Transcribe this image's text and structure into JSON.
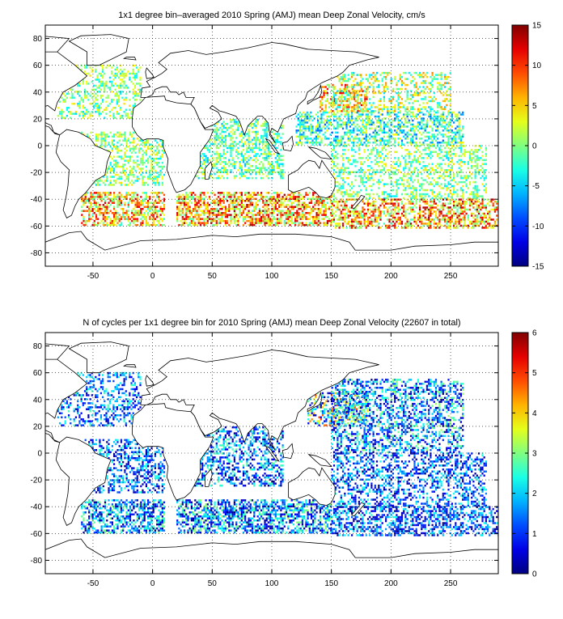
{
  "chart_data": [
    {
      "type": "heatmap",
      "title": "1x1 degree bin–averaged 2010 Spring (AMJ) mean Deep Zonal Velocity, cm/s",
      "xlabel": "",
      "ylabel": "",
      "xlim": [
        -90,
        290
      ],
      "ylim": [
        -90,
        90
      ],
      "x_ticks": [
        -50,
        0,
        50,
        100,
        150,
        200,
        250
      ],
      "y_ticks": [
        80,
        60,
        40,
        20,
        0,
        -20,
        -40,
        -60,
        -80
      ],
      "grid": true,
      "grid_style": "dotted",
      "colorbar": {
        "range": [
          -15,
          15
        ],
        "ticks": [
          15,
          10,
          5,
          0,
          -5,
          -10,
          -15
        ],
        "colormap": "jet",
        "placement": "right"
      },
      "regions": [
        {
          "x": [
            -80,
            -10
          ],
          "y": [
            20,
            60
          ],
          "value": 0,
          "spread": 3,
          "density": 0.35
        },
        {
          "x": [
            -60,
            10
          ],
          "y": [
            -30,
            10
          ],
          "value": 0,
          "spread": 3,
          "density": 0.45
        },
        {
          "x": [
            -60,
            10
          ],
          "y": [
            -60,
            -35
          ],
          "value": 5,
          "spread": 5,
          "density": 0.55
        },
        {
          "x": [
            20,
            110
          ],
          "y": [
            -25,
            20
          ],
          "value": -1,
          "spread": 3,
          "density": 0.45
        },
        {
          "x": [
            20,
            150
          ],
          "y": [
            -60,
            -35
          ],
          "value": 6,
          "spread": 5,
          "density": 0.6
        },
        {
          "x": [
            140,
            180
          ],
          "y": [
            25,
            45
          ],
          "value": 6,
          "spread": 4,
          "density": 0.45
        },
        {
          "x": [
            120,
            260
          ],
          "y": [
            0,
            25
          ],
          "value": -2,
          "spread": 4,
          "density": 0.5
        },
        {
          "x": [
            150,
            250
          ],
          "y": [
            25,
            55
          ],
          "value": 1,
          "spread": 4,
          "density": 0.35
        },
        {
          "x": [
            150,
            280
          ],
          "y": [
            -40,
            0
          ],
          "value": 0,
          "spread": 3,
          "density": 0.35
        },
        {
          "x": [
            150,
            290
          ],
          "y": [
            -62,
            -40
          ],
          "value": 6,
          "spread": 5,
          "density": 0.55
        }
      ]
    },
    {
      "type": "heatmap",
      "title": "N of cycles per 1x1 degree bin for 2010 Spring (AMJ) mean Deep Zonal Velocity (22607 in total)",
      "xlabel": "",
      "ylabel": "",
      "xlim": [
        -90,
        290
      ],
      "ylim": [
        -90,
        90
      ],
      "x_ticks": [
        -50,
        0,
        50,
        100,
        150,
        200,
        250
      ],
      "y_ticks": [
        80,
        60,
        40,
        20,
        0,
        -20,
        -40,
        -60,
        -80
      ],
      "grid": true,
      "grid_style": "dotted",
      "total": 22607,
      "colorbar": {
        "range": [
          0,
          6
        ],
        "ticks": [
          6,
          5,
          4,
          3,
          2,
          1,
          0
        ],
        "colormap": "jet",
        "placement": "right"
      },
      "regions": [
        {
          "x": [
            -80,
            -10
          ],
          "y": [
            20,
            60
          ],
          "value": 1.5,
          "spread": 0.8,
          "density": 0.35
        },
        {
          "x": [
            -60,
            10
          ],
          "y": [
            -30,
            10
          ],
          "value": 1.3,
          "spread": 0.8,
          "density": 0.45
        },
        {
          "x": [
            -60,
            10
          ],
          "y": [
            -60,
            -35
          ],
          "value": 1.5,
          "spread": 1,
          "density": 0.55
        },
        {
          "x": [
            20,
            110
          ],
          "y": [
            -25,
            20
          ],
          "value": 1.4,
          "spread": 0.9,
          "density": 0.45
        },
        {
          "x": [
            20,
            150
          ],
          "y": [
            -60,
            -35
          ],
          "value": 1.6,
          "spread": 1,
          "density": 0.6
        },
        {
          "x": [
            130,
            180
          ],
          "y": [
            20,
            45
          ],
          "value": 2.5,
          "spread": 1.5,
          "density": 0.45
        },
        {
          "x": [
            150,
            260
          ],
          "y": [
            0,
            55
          ],
          "value": 1.6,
          "spread": 1,
          "density": 0.45
        },
        {
          "x": [
            150,
            280
          ],
          "y": [
            -40,
            0
          ],
          "value": 1.3,
          "spread": 0.8,
          "density": 0.4
        },
        {
          "x": [
            150,
            290
          ],
          "y": [
            -62,
            -40
          ],
          "value": 1.2,
          "spread": 0.8,
          "density": 0.5
        }
      ]
    }
  ],
  "land": [
    {
      "name": "north-america",
      "points": [
        [
          -168,
          66
        ],
        [
          -160,
          70
        ],
        [
          -140,
          70
        ],
        [
          -125,
          70
        ],
        [
          -95,
          72
        ],
        [
          -80,
          70
        ],
        [
          -65,
          60
        ],
        [
          -55,
          52
        ],
        [
          -65,
          45
        ],
        [
          -75,
          40
        ],
        [
          -80,
          32
        ],
        [
          -82,
          26
        ],
        [
          -88,
          30
        ],
        [
          -97,
          27
        ],
        [
          -97,
          20
        ],
        [
          -92,
          18
        ],
        [
          -85,
          15
        ],
        [
          -83,
          10
        ],
        [
          -78,
          8
        ],
        [
          -82,
          9
        ],
        [
          -87,
          14
        ],
        [
          -95,
          16
        ],
        [
          -105,
          20
        ],
        [
          -110,
          24
        ],
        [
          -115,
          30
        ],
        [
          -122,
          37
        ],
        [
          -124,
          43
        ],
        [
          -124,
          48
        ],
        [
          -135,
          58
        ],
        [
          -150,
          60
        ],
        [
          -165,
          60
        ],
        [
          -168,
          66
        ]
      ]
    },
    {
      "name": "greenland",
      "points": [
        [
          -55,
          60
        ],
        [
          -45,
          60
        ],
        [
          -22,
          70
        ],
        [
          -20,
          80
        ],
        [
          -35,
          83
        ],
        [
          -60,
          82
        ],
        [
          -70,
          78
        ],
        [
          -55,
          70
        ],
        [
          -55,
          60
        ]
      ]
    },
    {
      "name": "south-america",
      "points": [
        [
          -78,
          8
        ],
        [
          -72,
          12
        ],
        [
          -62,
          10
        ],
        [
          -52,
          5
        ],
        [
          -48,
          0
        ],
        [
          -35,
          -5
        ],
        [
          -38,
          -12
        ],
        [
          -40,
          -22
        ],
        [
          -48,
          -26
        ],
        [
          -56,
          -35
        ],
        [
          -62,
          -40
        ],
        [
          -65,
          -45
        ],
        [
          -68,
          -52
        ],
        [
          -72,
          -54
        ],
        [
          -75,
          -48
        ],
        [
          -73,
          -40
        ],
        [
          -71,
          -30
        ],
        [
          -70,
          -18
        ],
        [
          -77,
          -12
        ],
        [
          -81,
          -5
        ],
        [
          -80,
          0
        ],
        [
          -78,
          8
        ]
      ]
    },
    {
      "name": "eurasia",
      "points": [
        [
          -10,
          36
        ],
        [
          -9,
          43
        ],
        [
          -2,
          44
        ],
        [
          -5,
          48
        ],
        [
          2,
          51
        ],
        [
          8,
          54
        ],
        [
          12,
          57
        ],
        [
          5,
          62
        ],
        [
          15,
          69
        ],
        [
          30,
          71
        ],
        [
          45,
          68
        ],
        [
          60,
          70
        ],
        [
          80,
          73
        ],
        [
          100,
          77
        ],
        [
          110,
          76
        ],
        [
          130,
          72
        ],
        [
          150,
          71
        ],
        [
          170,
          70
        ],
        [
          180,
          68
        ],
        [
          190,
          66
        ],
        [
          180,
          64
        ],
        [
          165,
          60
        ],
        [
          160,
          55
        ],
        [
          155,
          52
        ],
        [
          142,
          47
        ],
        [
          135,
          43
        ],
        [
          130,
          40
        ],
        [
          128,
          35
        ],
        [
          122,
          30
        ],
        [
          120,
          24
        ],
        [
          110,
          20
        ],
        [
          108,
          16
        ],
        [
          105,
          10
        ],
        [
          100,
          13
        ],
        [
          98,
          8
        ],
        [
          103,
          2
        ],
        [
          98,
          10
        ],
        [
          97,
          17
        ],
        [
          92,
          22
        ],
        [
          88,
          22
        ],
        [
          80,
          15
        ],
        [
          77,
          8
        ],
        [
          73,
          18
        ],
        [
          70,
          22
        ],
        [
          60,
          25
        ],
        [
          56,
          26
        ],
        [
          50,
          30
        ],
        [
          48,
          28
        ],
        [
          55,
          25
        ],
        [
          58,
          20
        ],
        [
          52,
          16
        ],
        [
          44,
          13
        ],
        [
          40,
          18
        ],
        [
          35,
          28
        ],
        [
          32,
          31
        ],
        [
          35,
          36
        ],
        [
          28,
          36
        ],
        [
          26,
          40
        ],
        [
          22,
          38
        ],
        [
          20,
          40
        ],
        [
          15,
          40
        ],
        [
          12,
          44
        ],
        [
          8,
          44
        ],
        [
          2,
          42
        ],
        [
          0,
          38
        ],
        [
          -5,
          36
        ],
        [
          -10,
          36
        ]
      ]
    },
    {
      "name": "africa",
      "points": [
        [
          -17,
          21
        ],
        [
          -16,
          28
        ],
        [
          -10,
          32
        ],
        [
          -6,
          36
        ],
        [
          10,
          37
        ],
        [
          11,
          34
        ],
        [
          20,
          32
        ],
        [
          32,
          31
        ],
        [
          35,
          28
        ],
        [
          40,
          18
        ],
        [
          44,
          12
        ],
        [
          51,
          12
        ],
        [
          48,
          5
        ],
        [
          40,
          -5
        ],
        [
          40,
          -15
        ],
        [
          35,
          -24
        ],
        [
          32,
          -29
        ],
        [
          27,
          -33
        ],
        [
          20,
          -35
        ],
        [
          18,
          -32
        ],
        [
          15,
          -25
        ],
        [
          12,
          -18
        ],
        [
          13,
          -10
        ],
        [
          9,
          -1
        ],
        [
          9,
          4
        ],
        [
          5,
          5
        ],
        [
          -5,
          5
        ],
        [
          -8,
          4
        ],
        [
          -13,
          8
        ],
        [
          -17,
          14
        ],
        [
          -17,
          21
        ]
      ]
    },
    {
      "name": "madagascar",
      "points": [
        [
          44,
          -25
        ],
        [
          47,
          -25
        ],
        [
          50,
          -16
        ],
        [
          49,
          -12
        ],
        [
          44,
          -17
        ],
        [
          44,
          -25
        ]
      ]
    },
    {
      "name": "australia",
      "points": [
        [
          114,
          -22
        ],
        [
          114,
          -33
        ],
        [
          118,
          -35
        ],
        [
          125,
          -33
        ],
        [
          131,
          -31
        ],
        [
          137,
          -35
        ],
        [
          140,
          -38
        ],
        [
          146,
          -39
        ],
        [
          150,
          -37
        ],
        [
          153,
          -31
        ],
        [
          153,
          -25
        ],
        [
          145,
          -15
        ],
        [
          142,
          -11
        ],
        [
          140,
          -17
        ],
        [
          136,
          -12
        ],
        [
          131,
          -11
        ],
        [
          126,
          -14
        ],
        [
          122,
          -18
        ],
        [
          114,
          -22
        ]
      ]
    },
    {
      "name": "antarctica",
      "points": [
        [
          -90,
          -72
        ],
        [
          -70,
          -65
        ],
        [
          -60,
          -64
        ],
        [
          -55,
          -70
        ],
        [
          -40,
          -78
        ],
        [
          -10,
          -71
        ],
        [
          20,
          -70
        ],
        [
          50,
          -67
        ],
        [
          70,
          -68
        ],
        [
          90,
          -66
        ],
        [
          120,
          -66
        ],
        [
          150,
          -68
        ],
        [
          165,
          -72
        ],
        [
          170,
          -78
        ],
        [
          200,
          -78
        ],
        [
          220,
          -75
        ],
        [
          250,
          -74
        ],
        [
          270,
          -72
        ],
        [
          290,
          -72
        ],
        [
          290,
          -90
        ],
        [
          -90,
          -90
        ],
        [
          -90,
          -72
        ]
      ]
    },
    {
      "name": "borneo",
      "points": [
        [
          109,
          2
        ],
        [
          110,
          -3
        ],
        [
          116,
          -4
        ],
        [
          118,
          1
        ],
        [
          117,
          7
        ],
        [
          113,
          3
        ],
        [
          109,
          2
        ]
      ]
    },
    {
      "name": "sumatra",
      "points": [
        [
          95,
          5
        ],
        [
          98,
          4
        ],
        [
          106,
          -6
        ],
        [
          103,
          -5
        ],
        [
          95,
          5
        ]
      ]
    },
    {
      "name": "new-guinea",
      "points": [
        [
          131,
          -1
        ],
        [
          137,
          -2
        ],
        [
          145,
          -5
        ],
        [
          150,
          -10
        ],
        [
          141,
          -9
        ],
        [
          137,
          -6
        ],
        [
          131,
          -1
        ]
      ]
    },
    {
      "name": "new-zealand",
      "points": [
        [
          167,
          -46
        ],
        [
          172,
          -41
        ],
        [
          175,
          -37
        ],
        [
          178,
          -38
        ],
        [
          174,
          -42
        ],
        [
          169,
          -47
        ],
        [
          167,
          -46
        ]
      ]
    },
    {
      "name": "japan",
      "points": [
        [
          130,
          31
        ],
        [
          135,
          34
        ],
        [
          140,
          36
        ],
        [
          142,
          40
        ],
        [
          141,
          45
        ],
        [
          139,
          40
        ],
        [
          135,
          35
        ],
        [
          130,
          33
        ],
        [
          130,
          31
        ]
      ]
    },
    {
      "name": "britain",
      "points": [
        [
          -5,
          50
        ],
        [
          1,
          51
        ],
        [
          0,
          53
        ],
        [
          -3,
          56
        ],
        [
          -5,
          58
        ],
        [
          -6,
          55
        ],
        [
          -5,
          50
        ]
      ]
    },
    {
      "name": "iceland",
      "points": [
        [
          -24,
          65
        ],
        [
          -14,
          64
        ],
        [
          -15,
          66
        ],
        [
          -22,
          66
        ],
        [
          -24,
          65
        ]
      ]
    },
    {
      "name": "arctic-islands",
      "points": [
        [
          -120,
          70
        ],
        [
          -80,
          70
        ],
        [
          -70,
          80
        ],
        [
          -95,
          82
        ],
        [
          -120,
          77
        ],
        [
          -120,
          70
        ]
      ]
    }
  ]
}
